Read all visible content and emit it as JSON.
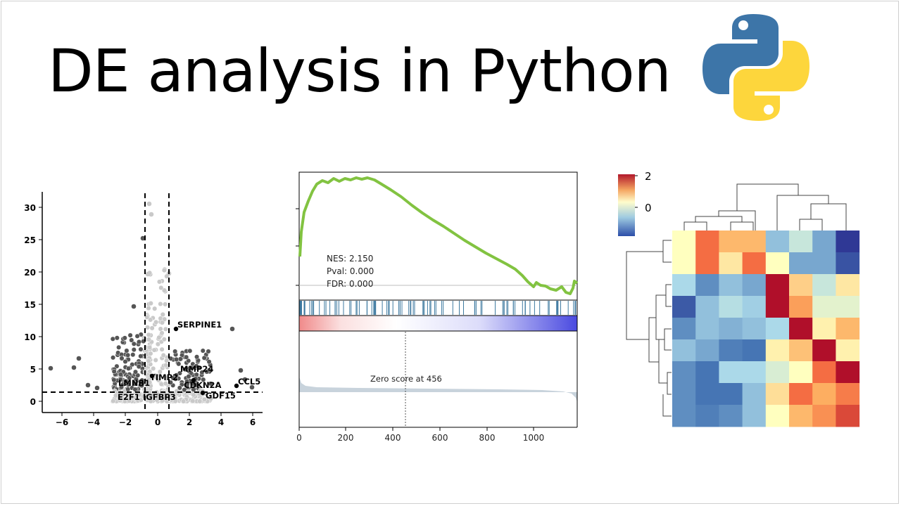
{
  "slide": {
    "title": "DE analysis in Python"
  },
  "logo": {
    "name": "python-logo",
    "colors": {
      "blue": "#3d75a8",
      "yellow": "#fdd63c"
    }
  },
  "volcano": {
    "x_ticks": [
      "−6",
      "−4",
      "−2",
      "0",
      "2",
      "4",
      "6"
    ],
    "y_ticks": [
      "0",
      "5",
      "10",
      "15",
      "20",
      "25",
      "30"
    ],
    "labels": {
      "serpine1": "SERPINE1",
      "mmp24": "MMP24",
      "timp2": "TIMP2",
      "lmnb1": "LMNB1",
      "cdkn2a": "CDKN2A",
      "ccl5": "CCL5",
      "e2f1": "E2F1",
      "igfbp3": "IGFBP3",
      "gdf15": "GDF15"
    }
  },
  "gsea": {
    "stats": {
      "nes": "NES: 2.150",
      "pval": "Pval: 0.000",
      "fdr": "FDR: 0.000"
    },
    "zero_score": "Zero score at 456",
    "x_ticks": [
      "0",
      "200",
      "400",
      "600",
      "800",
      "1000"
    ],
    "colors": {
      "curve": "#82c341",
      "hits": "#3f7aa0",
      "ranked": "#c8d3dc"
    }
  },
  "heatmap": {
    "colorbar_ticks": [
      "2",
      "0"
    ],
    "grid": [
      [
        0.55,
        0.85,
        0.7,
        0.7,
        0.35,
        0.45,
        0.3,
        0.02
      ],
      [
        0.55,
        0.85,
        0.6,
        0.85,
        0.55,
        0.3,
        0.3,
        0.1
      ],
      [
        0.4,
        0.25,
        0.35,
        0.3,
        0.98,
        0.65,
        0.45,
        0.6
      ],
      [
        0.12,
        0.35,
        0.42,
        0.38,
        0.98,
        0.75,
        0.5,
        0.5
      ],
      [
        0.25,
        0.35,
        0.32,
        0.35,
        0.4,
        0.98,
        0.58,
        0.7
      ],
      [
        0.35,
        0.3,
        0.22,
        0.2,
        0.58,
        0.68,
        0.98,
        0.58
      ],
      [
        0.25,
        0.2,
        0.4,
        0.4,
        0.48,
        0.55,
        0.85,
        0.98
      ],
      [
        0.25,
        0.2,
        0.2,
        0.35,
        0.62,
        0.85,
        0.72,
        0.82
      ],
      [
        0.25,
        0.22,
        0.25,
        0.35,
        0.55,
        0.7,
        0.78,
        0.9
      ]
    ]
  }
}
